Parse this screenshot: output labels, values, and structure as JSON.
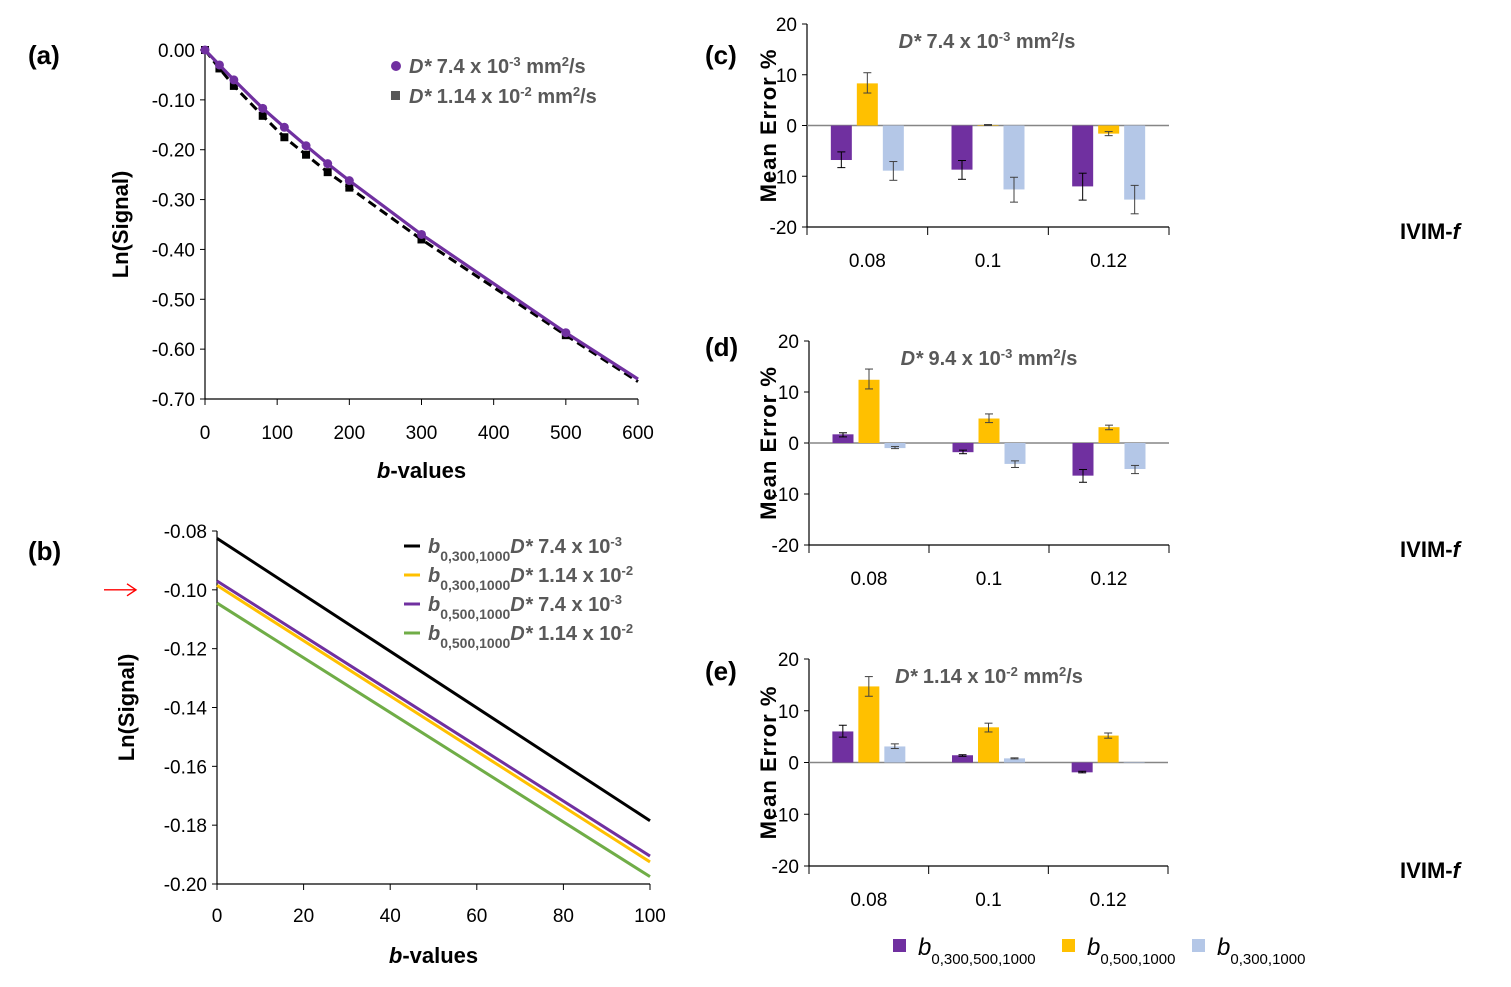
{
  "colors": {
    "purple": "#7030a0",
    "black": "#000000",
    "yellow": "#ffc000",
    "lightblue": "#b4c7e7",
    "green": "#70ad47",
    "legend_text": "#595959",
    "arrow": "#ff0000",
    "zero_line": "#868686",
    "error_bar": "#404040"
  },
  "chart_data": [
    {
      "panel": "(a)",
      "type": "line",
      "xlabel_italic": "b",
      "xlabel_rest": "-values",
      "ylabel": "Ln(Signal)",
      "xlim": [
        0,
        600
      ],
      "ylim": [
        -0.7,
        0.0
      ],
      "xticks": [
        "0",
        "100",
        "200",
        "300",
        "400",
        "500",
        "600"
      ],
      "yticks": [
        "0.00",
        "-0.10",
        "-0.20",
        "-0.30",
        "-0.40",
        "-0.50",
        "-0.60",
        "-0.70"
      ],
      "legend_position": "top-right",
      "series": [
        {
          "name": "D* 7.4 x 10-3 mm2/s",
          "legend_prefix": "D*",
          "legend_text": " 7.4 x 10",
          "legend_exp": "-3",
          "legend_unit": " mm",
          "legend_unit_exp": "2",
          "legend_unit_end": "/s",
          "marker": "circle",
          "style": "solid",
          "color_key": "purple",
          "x": [
            0,
            20,
            40,
            80,
            110,
            140,
            170,
            200,
            300,
            500
          ],
          "y": [
            0.0,
            -0.03,
            -0.06,
            -0.117,
            -0.155,
            -0.192,
            -0.228,
            -0.262,
            -0.37,
            -0.567
          ],
          "curve_end": [
            600,
            -0.66
          ]
        },
        {
          "name": "D* 1.14 x 10-2 mm2/s",
          "legend_prefix": "D*",
          "legend_text": " 1.14 x 10",
          "legend_exp": "-2",
          "legend_unit": " mm",
          "legend_unit_exp": "2",
          "legend_unit_end": "/s",
          "marker": "square",
          "style": "dashed",
          "color_key": "black",
          "x": [
            0,
            20,
            40,
            80,
            110,
            140,
            170,
            200,
            300,
            500
          ],
          "y": [
            0.0,
            -0.037,
            -0.072,
            -0.132,
            -0.175,
            -0.21,
            -0.245,
            -0.276,
            -0.38,
            -0.572
          ],
          "curve_end": [
            600,
            -0.665
          ]
        }
      ]
    },
    {
      "panel": "(b)",
      "type": "line",
      "xlabel_italic": "b",
      "xlabel_rest": "-values",
      "ylabel": "Ln(Signal)",
      "xlim": [
        0,
        100
      ],
      "ylim": [
        -0.2,
        -0.08
      ],
      "xticks": [
        "0",
        "20",
        "40",
        "60",
        "80",
        "100"
      ],
      "yticks": [
        "-0.08",
        "-0.10",
        "-0.12",
        "-0.14",
        "-0.16",
        "-0.18",
        "-0.20"
      ],
      "annotation": "red arrow pointing at -0.10",
      "legend_position": "top-right",
      "series": [
        {
          "name": "b0,300,1000 D* 7.4 x 10-3",
          "sub": "0,300,1000",
          "label": " 7.4 x 10",
          "exp": "-3",
          "color_key": "black",
          "x": [
            0,
            100
          ],
          "y": [
            -0.0825,
            -0.1785
          ]
        },
        {
          "name": "b0,300,1000 D* 1.14 x 10-2",
          "sub": "0,300,1000",
          "label": " 1.14 x 10",
          "exp": "-2",
          "color_key": "yellow",
          "x": [
            0,
            100
          ],
          "y": [
            -0.0985,
            -0.1925
          ]
        },
        {
          "name": "b0,500,1000 D* 7.4 x 10-3",
          "sub": "0,500,1000",
          "label": " 7.4 x 10",
          "exp": "-3",
          "color_key": "purple",
          "x": [
            0,
            100
          ],
          "y": [
            -0.097,
            -0.1905
          ]
        },
        {
          "name": "b0,500,1000 D* 1.14 x 10-2",
          "sub": "0,500,1000",
          "label": " 1.14 x 10",
          "exp": "-2",
          "color_key": "green",
          "x": [
            0,
            100
          ],
          "y": [
            -0.1045,
            -0.1975
          ]
        }
      ]
    },
    {
      "panel": "(c)",
      "type": "bar",
      "title_prefix": "D*",
      "title_text": " 7.4 x 10",
      "title_exp": "-3",
      "title_unit": " mm",
      "title_unit_exp": "2",
      "title_unit_end": "/s",
      "ylabel": "Mean Error %",
      "xlabel": "IVIM-",
      "xlabel_italic": "f",
      "categories": [
        "0.08",
        "0.1",
        "0.12"
      ],
      "ylim": [
        -20,
        20
      ],
      "yticks": [
        "20",
        "10",
        "0",
        "-10",
        "-20"
      ],
      "series": [
        {
          "name": "b0,300,500,1000",
          "color_key": "purple",
          "values": [
            -6.8,
            -8.7,
            -12.0
          ],
          "err_low": [
            -8.3,
            -10.6,
            -14.7
          ],
          "err_high": [
            -5.2,
            -6.9,
            -9.4
          ]
        },
        {
          "name": "b0,500,1000",
          "color_key": "yellow",
          "values": [
            8.3,
            0.1,
            -1.6
          ],
          "err_low": [
            6.4,
            0.0,
            -2.0
          ],
          "err_high": [
            10.4,
            0.2,
            -1.2
          ]
        },
        {
          "name": "b0,300,1000",
          "color_key": "lightblue",
          "values": [
            -8.9,
            -12.6,
            -14.6
          ],
          "err_low": [
            -10.8,
            -15.1,
            -17.4
          ],
          "err_high": [
            -7.1,
            -10.2,
            -11.8
          ]
        }
      ]
    },
    {
      "panel": "(d)",
      "type": "bar",
      "title_prefix": "D*",
      "title_text": " 9.4 x 10",
      "title_exp": "-3",
      "title_unit": " mm",
      "title_unit_exp": "2",
      "title_unit_end": "/s",
      "ylabel": "Mean Error %",
      "xlabel": "IVIM-",
      "xlabel_italic": "f",
      "categories": [
        "0.08",
        "0.1",
        "0.12"
      ],
      "ylim": [
        -20,
        20
      ],
      "yticks": [
        "20",
        "10",
        "0",
        "-10",
        "-20"
      ],
      "series": [
        {
          "name": "b0,300,500,1000",
          "color_key": "purple",
          "values": [
            1.7,
            -1.8,
            -6.4
          ],
          "err_low": [
            1.2,
            -2.1,
            -7.7
          ],
          "err_high": [
            2.0,
            -1.4,
            -5.2
          ]
        },
        {
          "name": "b0,500,1000",
          "color_key": "yellow",
          "values": [
            12.4,
            4.8,
            3.1
          ],
          "err_low": [
            10.6,
            4.0,
            2.6
          ],
          "err_high": [
            14.5,
            5.7,
            3.5
          ]
        },
        {
          "name": "b0,300,1000",
          "color_key": "lightblue",
          "values": [
            -1.0,
            -4.1,
            -5.1
          ],
          "err_low": [
            -1.1,
            -4.8,
            -6.0
          ],
          "err_high": [
            -0.7,
            -3.5,
            -4.4
          ]
        }
      ]
    },
    {
      "panel": "(e)",
      "type": "bar",
      "title_prefix": "D*",
      "title_text": " 1.14 x 10",
      "title_exp": "-2",
      "title_unit": " mm",
      "title_unit_exp": "2",
      "title_unit_end": "/s",
      "ylabel": "Mean Error %",
      "xlabel": "IVIM-",
      "xlabel_italic": "f",
      "categories": [
        "0.08",
        "0.1",
        "0.12"
      ],
      "ylim": [
        -20,
        20
      ],
      "yticks": [
        "20",
        "10",
        "0",
        "-10",
        "-20"
      ],
      "legend_position": "bottom",
      "series": [
        {
          "name": "b0,300,500,1000",
          "sub": "0,300,500,1000",
          "color_key": "purple",
          "values": [
            6.0,
            1.4,
            -1.9
          ],
          "err_low": [
            4.9,
            1.2,
            -2.0
          ],
          "err_high": [
            7.2,
            1.5,
            -1.7
          ]
        },
        {
          "name": "b0,500,1000",
          "sub": "0,500,1000",
          "color_key": "yellow",
          "values": [
            14.7,
            6.8,
            5.2
          ],
          "err_low": [
            12.8,
            5.9,
            4.7
          ],
          "err_high": [
            16.6,
            7.6,
            5.7
          ]
        },
        {
          "name": "b0,300,1000",
          "sub": "0,300,1000",
          "color_key": "lightblue",
          "values": [
            3.1,
            0.8,
            0.0
          ],
          "err_low": [
            2.7,
            0.7,
            null
          ],
          "err_high": [
            3.6,
            0.9,
            null
          ]
        }
      ]
    }
  ]
}
